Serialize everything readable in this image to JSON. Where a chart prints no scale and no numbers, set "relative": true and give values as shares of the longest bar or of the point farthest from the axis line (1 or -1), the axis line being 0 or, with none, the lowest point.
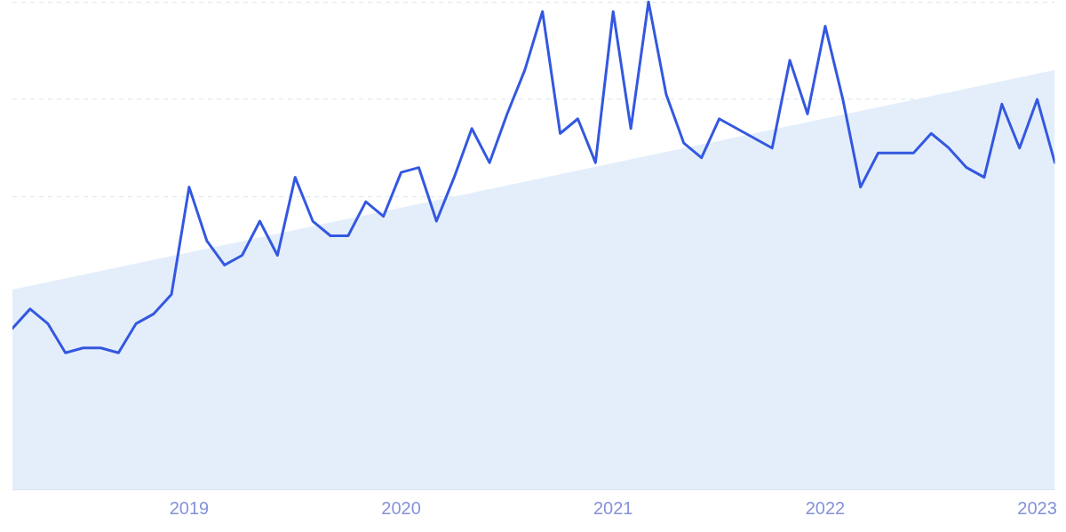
{
  "chart_data": {
    "type": "line",
    "relative": true,
    "marker": "none",
    "grid": "y",
    "tick_labels": "x",
    "legend": false,
    "x": [
      "2018-03",
      "2018-04",
      "2018-05",
      "2018-06",
      "2018-07",
      "2018-08",
      "2018-09",
      "2018-10",
      "2018-11",
      "2018-12",
      "2019-01",
      "2019-02",
      "2019-03",
      "2019-04",
      "2019-05",
      "2019-06",
      "2019-07",
      "2019-08",
      "2019-09",
      "2019-10",
      "2019-11",
      "2019-12",
      "2020-01",
      "2020-02",
      "2020-03",
      "2020-04",
      "2020-05",
      "2020-06",
      "2020-07",
      "2020-08",
      "2020-09",
      "2020-10",
      "2020-11",
      "2020-12",
      "2021-01",
      "2021-02",
      "2021-03",
      "2021-04",
      "2021-05",
      "2021-06",
      "2021-07",
      "2021-08",
      "2021-09",
      "2021-10",
      "2021-11",
      "2021-12",
      "2022-01",
      "2022-02",
      "2022-03",
      "2022-04",
      "2022-05",
      "2022-06",
      "2022-07",
      "2022-08",
      "2022-09",
      "2022-10",
      "2022-11",
      "2022-12",
      "2023-01",
      "2023-02"
    ],
    "xlim": [
      "2018-03",
      "2023-02"
    ],
    "xticks": [
      "2019",
      "2020",
      "2021",
      "2022",
      "2023"
    ],
    "series": [
      {
        "color": "#3358e0",
        "values": [
          0.33,
          0.37,
          0.34,
          0.28,
          0.29,
          0.29,
          0.28,
          0.34,
          0.36,
          0.4,
          0.62,
          0.51,
          0.46,
          0.48,
          0.55,
          0.48,
          0.64,
          0.55,
          0.52,
          0.52,
          0.59,
          0.56,
          0.65,
          0.66,
          0.55,
          0.64,
          0.74,
          0.67,
          0.77,
          0.86,
          0.98,
          0.73,
          0.76,
          0.67,
          0.98,
          0.74,
          1,
          0.81,
          0.71,
          0.68,
          0.76,
          0.74,
          0.72,
          0.7,
          0.88,
          0.77,
          0.95,
          0.8,
          0.62,
          0.69,
          0.69,
          0.69,
          0.73,
          0.7,
          0.66,
          0.64,
          0.79,
          0.7,
          0.8,
          0.67
        ]
      },
      {
        "type": "area",
        "color": "#e4eefb",
        "x": [
          "2018-03",
          "2023-02"
        ],
        "values": [
          0.41,
          0.86
        ]
      }
    ]
  }
}
